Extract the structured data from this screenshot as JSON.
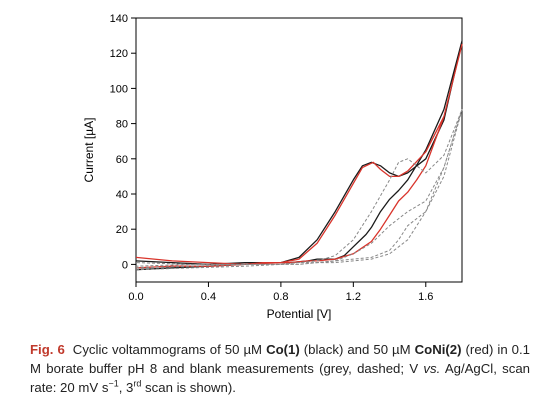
{
  "chart_data": {
    "type": "line",
    "title": "",
    "xlabel": "Potential [V]",
    "ylabel": "Current [µA]",
    "xlim": [
      0.0,
      1.8
    ],
    "ylim": [
      -10,
      140
    ],
    "x_ticks": [
      "0.0",
      "0.4",
      "0.8",
      "1.2",
      "1.6"
    ],
    "x_tick_values": [
      0.0,
      0.4,
      0.8,
      1.2,
      1.6
    ],
    "y_ticks": [
      "0",
      "20",
      "40",
      "60",
      "80",
      "100",
      "120",
      "140"
    ],
    "y_tick_values": [
      0,
      20,
      40,
      60,
      80,
      100,
      120,
      140
    ],
    "grid": false,
    "series": [
      {
        "color": "#1a1a1a",
        "style": "solid",
        "x": [
          0.0,
          0.2,
          0.4,
          0.6,
          0.7,
          0.85,
          0.95,
          1.0,
          1.1,
          1.15,
          1.2,
          1.27,
          1.3,
          1.35,
          1.4,
          1.45,
          1.5,
          1.6,
          1.7,
          1.8,
          1.7,
          1.6,
          1.5,
          1.45,
          1.4,
          1.35,
          1.3,
          1.25,
          1.2,
          1.1,
          1.0,
          0.9,
          0.8,
          0.6,
          0.4,
          0.2,
          0.0
        ],
        "y": [
          -3,
          -2,
          -1,
          0,
          1,
          1,
          2,
          3,
          3,
          5,
          10,
          17,
          21,
          30,
          37,
          42,
          48,
          65,
          88,
          127,
          82,
          60,
          52,
          50,
          52,
          56,
          58,
          56,
          48,
          30,
          14,
          4,
          1,
          1,
          0,
          1,
          2
        ]
      },
      {
        "color": "#d9342b",
        "style": "solid",
        "x": [
          0.0,
          0.2,
          0.4,
          0.6,
          0.7,
          0.85,
          0.95,
          1.0,
          1.1,
          1.2,
          1.3,
          1.35,
          1.4,
          1.45,
          1.5,
          1.55,
          1.6,
          1.7,
          1.8,
          1.7,
          1.6,
          1.5,
          1.45,
          1.4,
          1.35,
          1.31,
          1.25,
          1.2,
          1.1,
          1.0,
          0.9,
          0.8,
          0.6,
          0.4,
          0.2,
          0.0
        ],
        "y": [
          -2,
          -1,
          -1,
          0,
          1,
          1,
          2,
          2,
          3,
          6,
          13,
          20,
          28,
          36,
          41,
          48,
          56,
          84,
          125,
          84,
          64,
          53,
          50,
          50,
          54,
          58,
          55,
          46,
          28,
          12,
          3,
          1,
          0,
          1,
          2,
          4
        ]
      },
      {
        "color": "#888888",
        "style": "dashed",
        "x": [
          0.0,
          0.3,
          0.6,
          0.8,
          0.9,
          1.0,
          1.1,
          1.2,
          1.3,
          1.4,
          1.45,
          1.5,
          1.55,
          1.6,
          1.7,
          1.8,
          1.7,
          1.6,
          1.55,
          1.5,
          1.45,
          1.4,
          1.3,
          1.2,
          1.1,
          1.0,
          0.9,
          0.8,
          0.6,
          0.3,
          0.0
        ],
        "y": [
          -2,
          -1,
          0,
          0,
          1,
          1,
          2,
          3,
          4,
          8,
          14,
          22,
          26,
          30,
          50,
          88,
          62,
          52,
          56,
          60,
          58,
          48,
          30,
          14,
          5,
          2,
          1,
          0,
          0,
          0,
          1
        ]
      },
      {
        "color": "#888888",
        "style": "dashed",
        "x": [
          0.0,
          0.3,
          0.6,
          0.8,
          0.9,
          1.0,
          1.1,
          1.2,
          1.3,
          1.4,
          1.5,
          1.6,
          1.7,
          1.8,
          1.7,
          1.6,
          1.5,
          1.4,
          1.3,
          1.2,
          1.1,
          1.0,
          0.9,
          0.8,
          0.6,
          0.3,
          0.0
        ],
        "y": [
          -3,
          -2,
          -1,
          0,
          0,
          1,
          1,
          2,
          3,
          6,
          14,
          30,
          55,
          88,
          55,
          36,
          30,
          22,
          12,
          6,
          2,
          1,
          0,
          0,
          0,
          0,
          -1
        ]
      }
    ]
  },
  "caption": {
    "fig_label": "Fig. 6",
    "part1": "Cyclic voltammograms of 50 µM ",
    "compound1": "Co(1)",
    "part2": " (black) and 50 µM ",
    "compound2": "CoNi(2)",
    "part3": " (red) in 0.1 M borate buffer pH 8 and blank measurements (grey, dashed; V ",
    "vs_text": "vs.",
    "part4": " Ag/AgCl, scan rate: 20 mV s",
    "exp": "−1",
    "part5": ", 3",
    "ord": "rd",
    "part6": " scan is shown)."
  }
}
